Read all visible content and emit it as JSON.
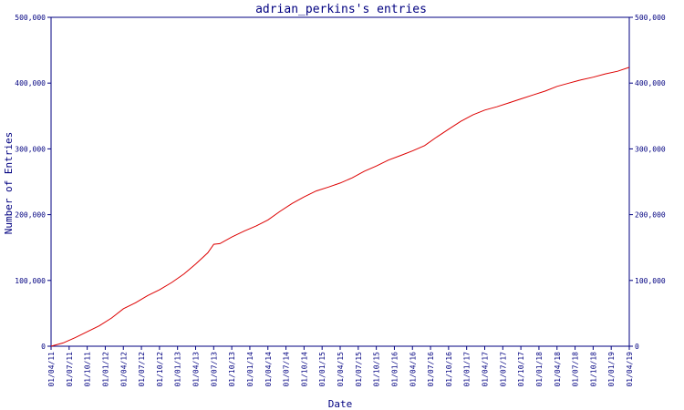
{
  "chart_data": {
    "type": "line",
    "title": "adrian_perkins's entries",
    "xlabel": "Date",
    "ylabel": "Number of Entries",
    "ylim": [
      0,
      500000
    ],
    "xlim": [
      "2011-04-01",
      "2019-04-01"
    ],
    "y_ticks": [
      "0",
      "100,000",
      "200,000",
      "300,000",
      "400,000",
      "500,000"
    ],
    "y_tick_values": [
      0,
      100000,
      200000,
      300000,
      400000,
      500000
    ],
    "x_tick_labels": [
      "01/04/11",
      "01/07/11",
      "01/10/11",
      "01/01/12",
      "01/04/12",
      "01/07/12",
      "01/10/12",
      "01/01/13",
      "01/04/13",
      "01/07/13",
      "01/10/13",
      "01/01/14",
      "01/04/14",
      "01/07/14",
      "01/10/14",
      "01/01/15",
      "01/04/15",
      "01/07/15",
      "01/10/15",
      "01/01/16",
      "01/04/16",
      "01/07/16",
      "01/10/16",
      "01/01/17",
      "01/04/17",
      "01/07/17",
      "01/10/17",
      "01/01/18",
      "01/04/18",
      "01/07/18",
      "01/10/18",
      "01/01/19",
      "01/04/19"
    ],
    "grid": false,
    "colors": {
      "line": "#dd0000",
      "axis": "#000080",
      "text": "#000080"
    },
    "series": [
      {
        "x": [
          "2011-04-01",
          "2011-06-01",
          "2011-08-01",
          "2011-10-01",
          "2011-12-01",
          "2012-02-01",
          "2012-04-01",
          "2012-06-01",
          "2012-08-01",
          "2012-10-01",
          "2012-12-01",
          "2013-02-01",
          "2013-04-01",
          "2013-06-01",
          "2013-07-01",
          "2013-08-01",
          "2013-10-01",
          "2013-12-01",
          "2014-02-01",
          "2014-04-01",
          "2014-06-01",
          "2014-08-01",
          "2014-10-01",
          "2014-12-01",
          "2015-02-01",
          "2015-04-01",
          "2015-06-01",
          "2015-08-01",
          "2015-10-01",
          "2015-12-01",
          "2016-02-01",
          "2016-04-01",
          "2016-06-01",
          "2016-08-01",
          "2016-10-01",
          "2016-12-01",
          "2017-02-01",
          "2017-04-01",
          "2017-06-01",
          "2017-08-01",
          "2017-10-01",
          "2017-12-01",
          "2018-02-01",
          "2018-04-01",
          "2018-06-01",
          "2018-08-01",
          "2018-10-01",
          "2018-12-01",
          "2019-02-01",
          "2019-04-01"
        ],
        "values": [
          0,
          5000,
          13000,
          22000,
          31000,
          43000,
          57000,
          66000,
          77000,
          86000,
          97000,
          110000,
          125000,
          142000,
          155000,
          156000,
          166000,
          175000,
          183000,
          192000,
          205000,
          217000,
          227000,
          236000,
          242000,
          248000,
          256000,
          266000,
          274000,
          283000,
          290000,
          297000,
          305000,
          318000,
          330000,
          342000,
          352000,
          359000,
          364000,
          370000,
          376000,
          382000,
          388000,
          395000,
          400000,
          405000,
          409000,
          414000,
          418000,
          424000
        ]
      }
    ]
  }
}
